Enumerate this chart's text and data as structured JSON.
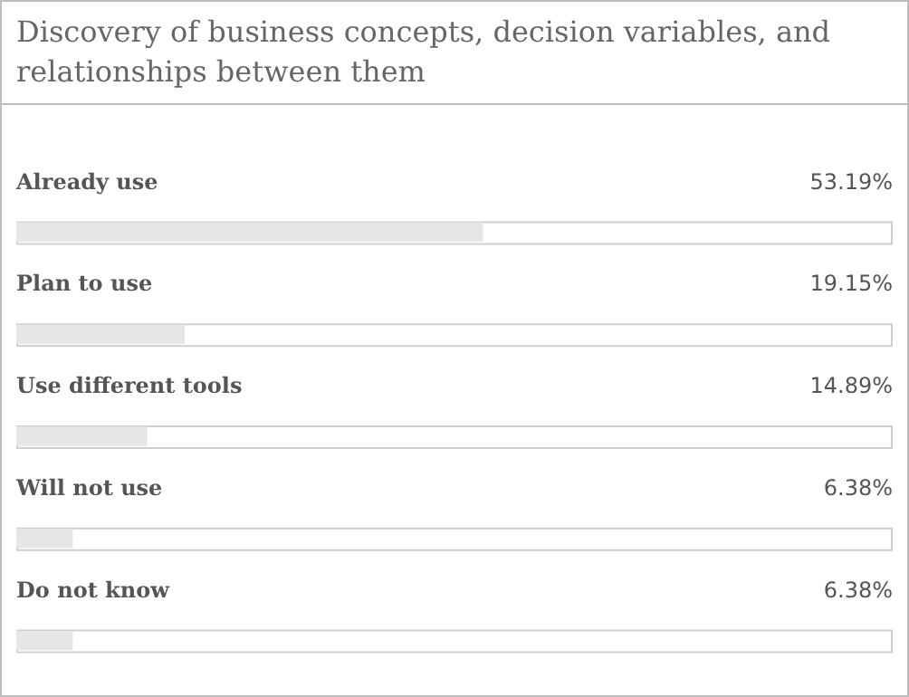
{
  "chart_data": {
    "type": "bar",
    "orientation": "horizontal",
    "title": "Discovery of business concepts, decision variables, and relationships between them",
    "categories": [
      "Already use",
      "Plan to use",
      "Use different tools",
      "Will not use",
      "Do not know"
    ],
    "values": [
      53.19,
      19.15,
      14.89,
      6.38,
      6.38
    ],
    "value_labels": [
      "53.19%",
      "19.15%",
      "14.89%",
      "6.38%",
      "6.38%"
    ],
    "color": "#e6e6e6",
    "xlim": [
      0,
      100
    ],
    "legend": false
  }
}
